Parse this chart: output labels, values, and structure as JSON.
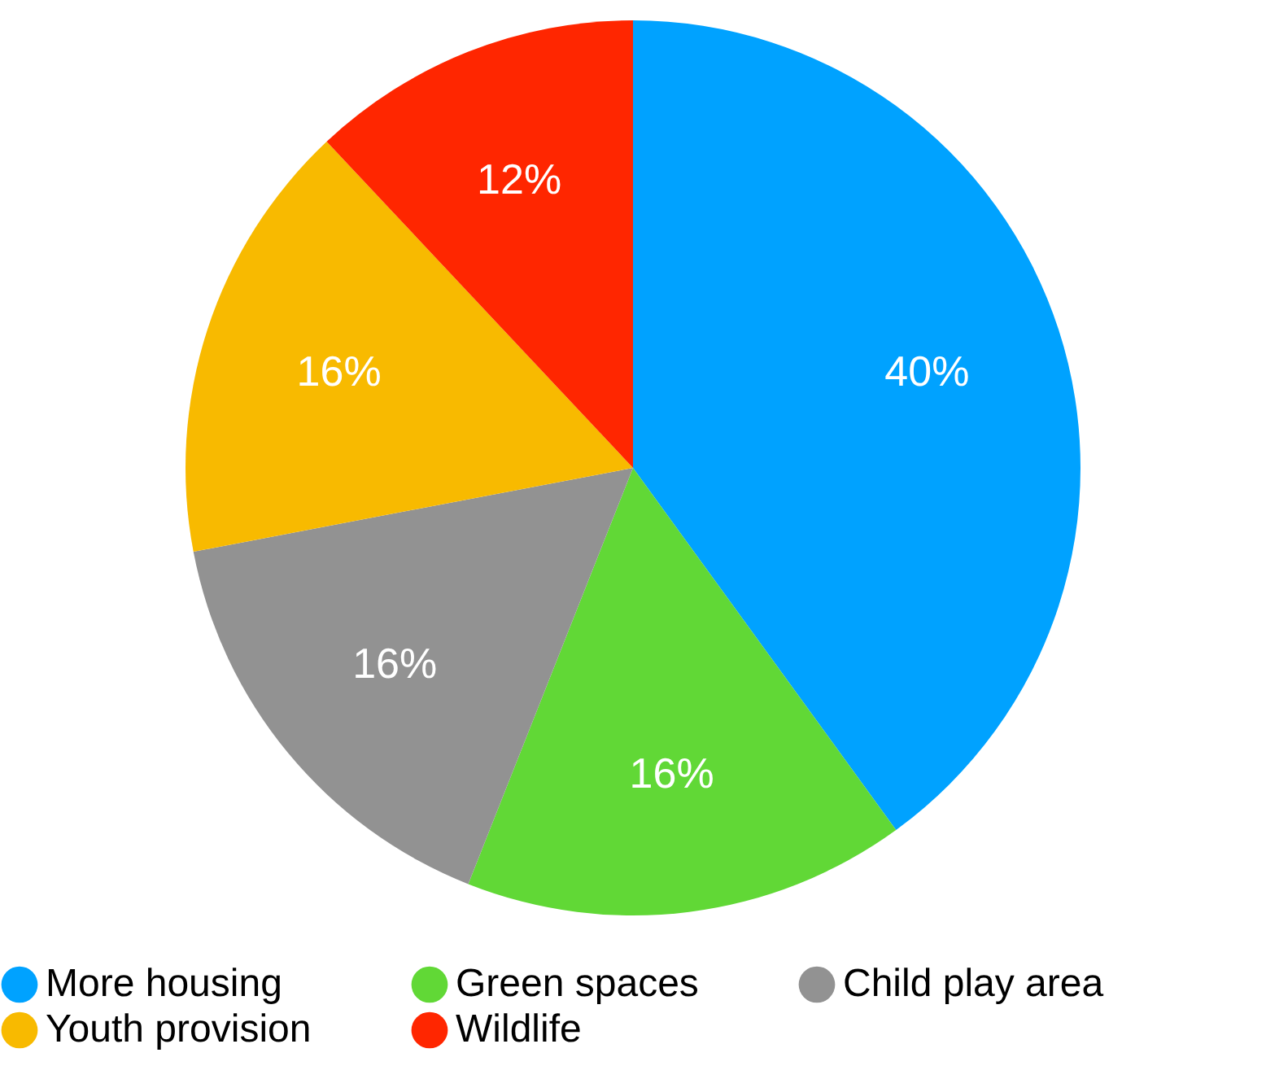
{
  "chart_data": {
    "type": "pie",
    "categories": [
      "More housing",
      "Green spaces",
      "Child play area",
      "Youth provision",
      "Wildlife"
    ],
    "values": [
      40,
      16,
      16,
      16,
      12
    ],
    "colors": [
      "#00a2ff",
      "#61d836",
      "#929292",
      "#f8ba00",
      "#ff2600"
    ],
    "value_labels": [
      "40%",
      "16%",
      "16%",
      "16%",
      "12%"
    ],
    "legend": "bottom"
  }
}
